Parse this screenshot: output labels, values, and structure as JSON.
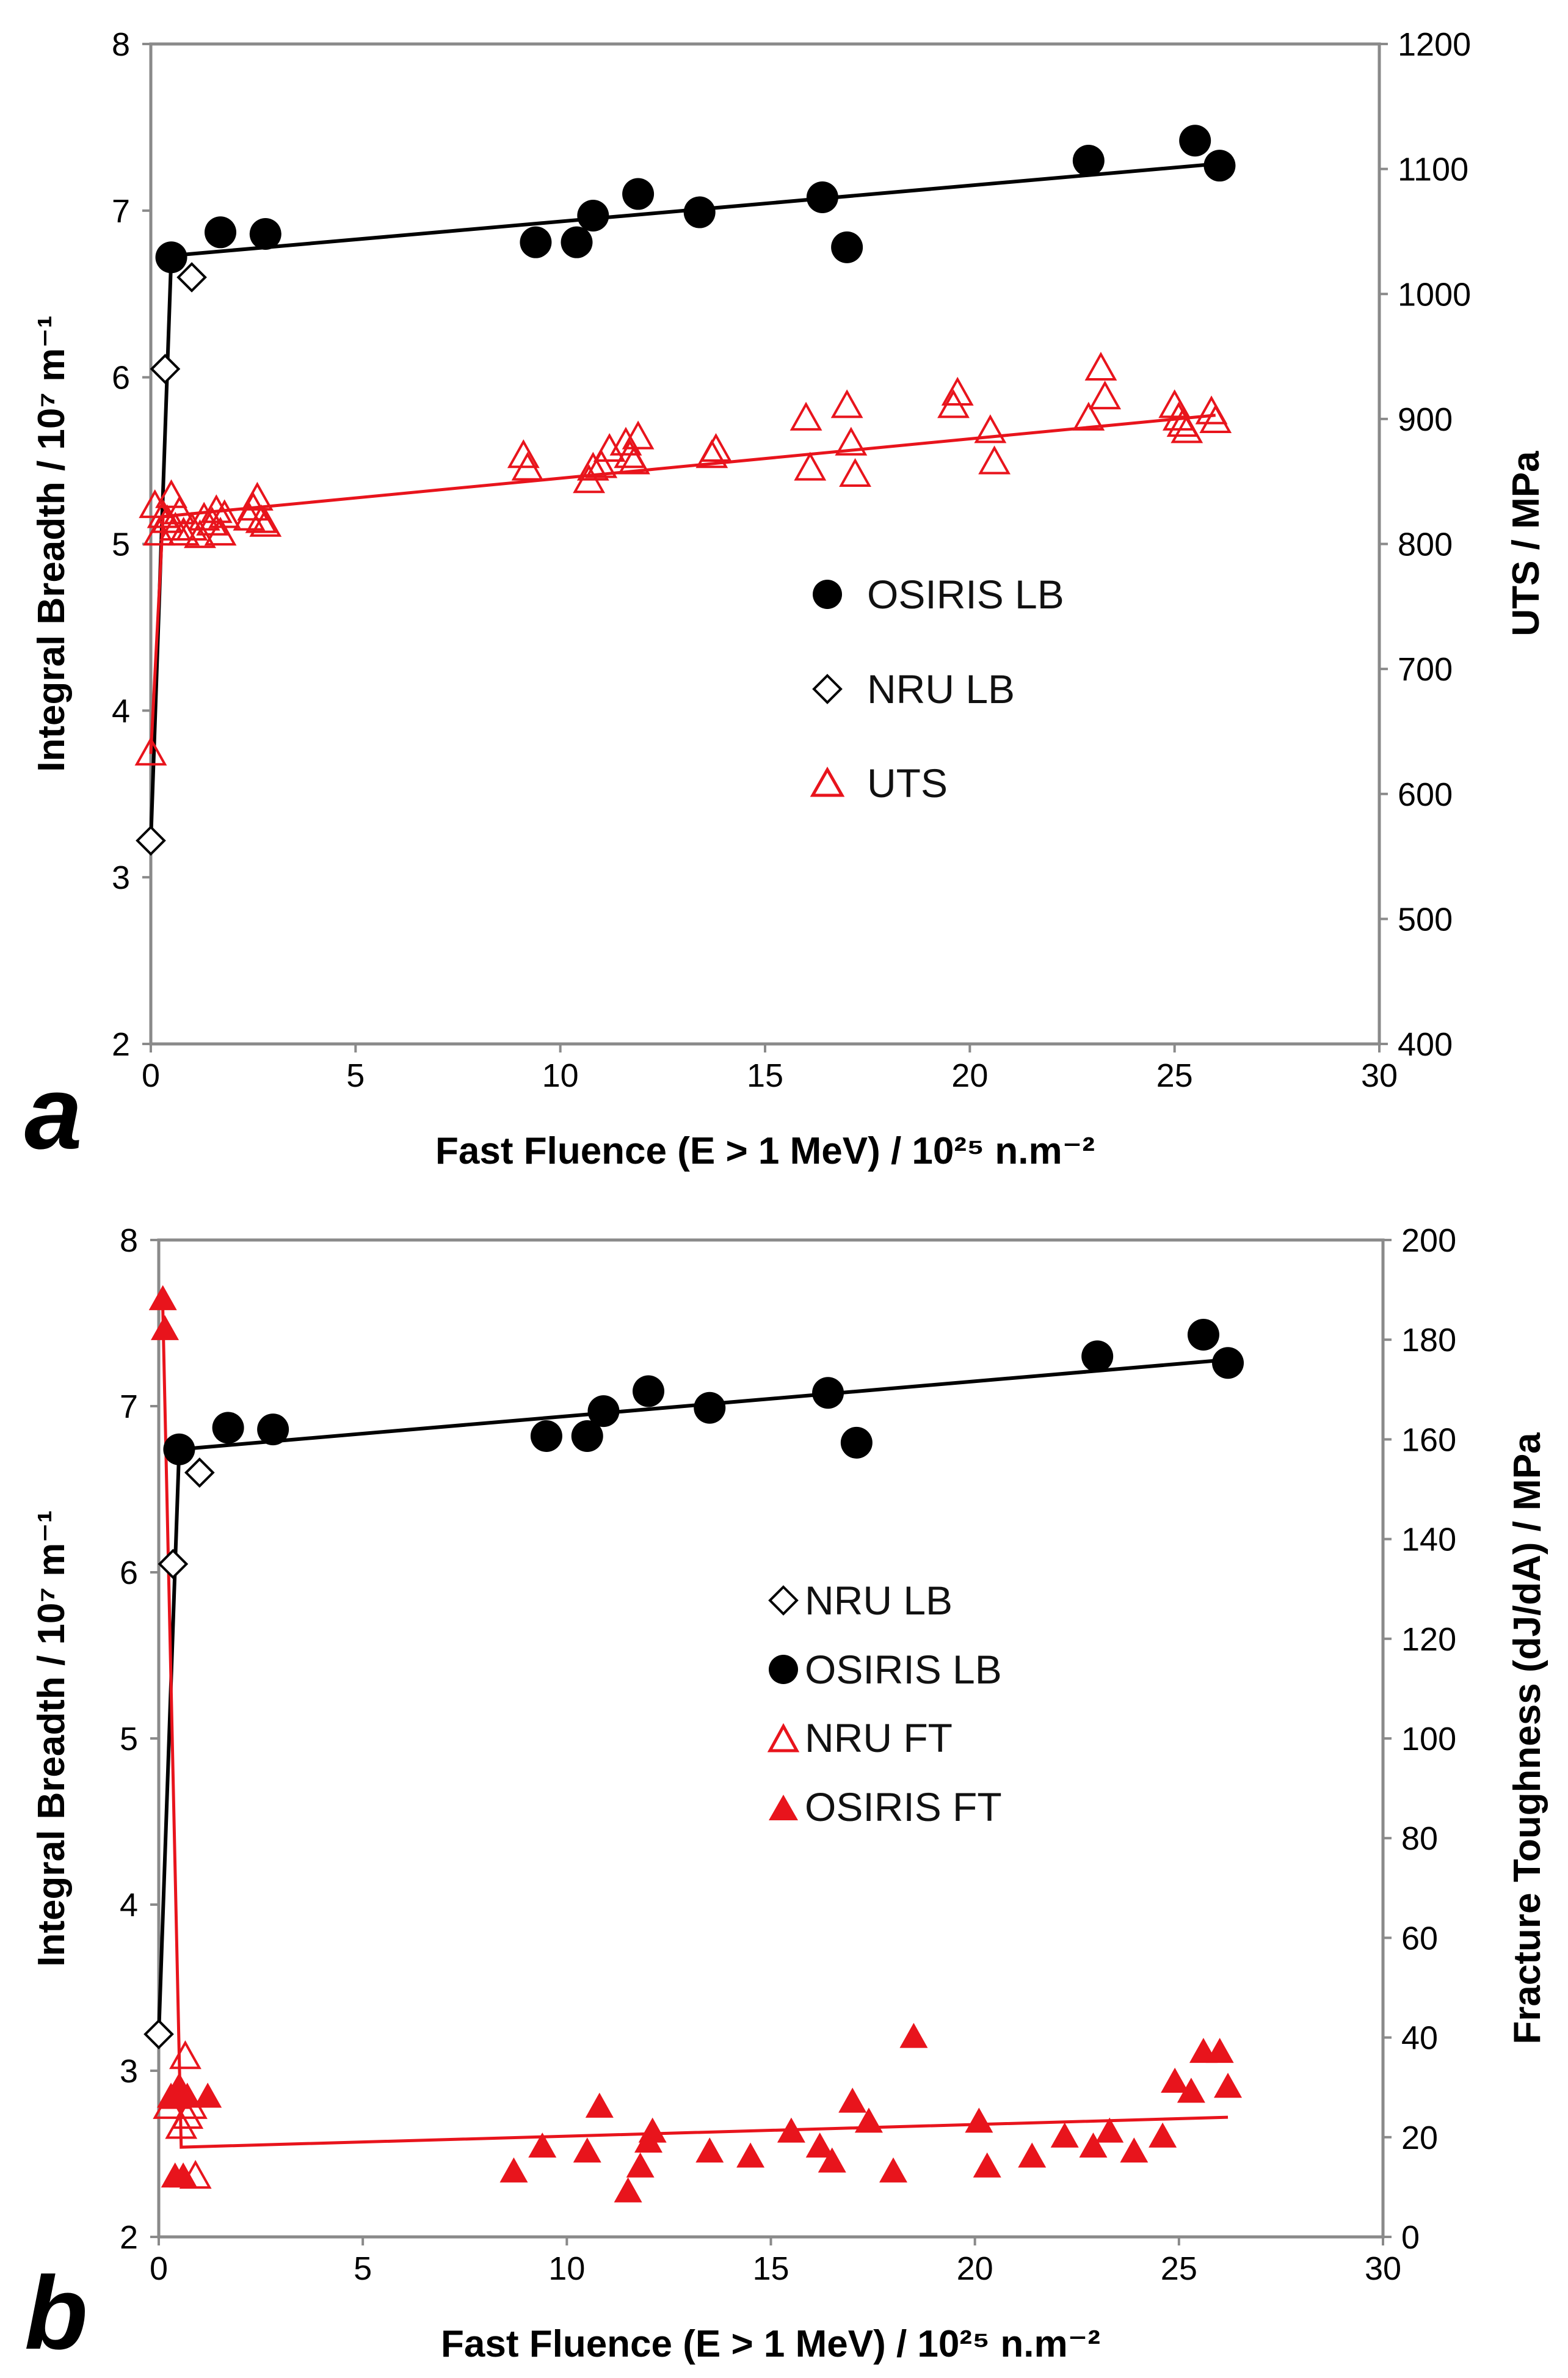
{
  "chart_data": [
    {
      "type": "scatter",
      "panel_label": "a",
      "xlabel": "Fast Fluence (E > 1 MeV)  / 10²⁵ n.m⁻²",
      "ylabel": "Integral Breadth / 10⁷ m⁻¹",
      "y2label": "UTS / MPa",
      "xlim": [
        0,
        30
      ],
      "ylim": [
        2,
        8
      ],
      "y2lim": [
        400,
        1200
      ],
      "xticks": [
        "0",
        "5",
        "10",
        "15",
        "20",
        "25",
        "30"
      ],
      "yticks": [
        "2",
        "3",
        "4",
        "5",
        "6",
        "7",
        "8"
      ],
      "y2ticks": [
        "400",
        "500",
        "600",
        "700",
        "800",
        "900",
        "1000",
        "1100",
        "1200"
      ],
      "legend": [
        "OSIRIS LB",
        "NRU LB",
        "UTS"
      ],
      "colors": {
        "black": "#000000",
        "red": "#e8141c"
      },
      "series": [
        {
          "name": "OSIRIS LB",
          "marker": "filled-circle",
          "axis": "left",
          "x": [
            0.5,
            1.7,
            2.8,
            9.4,
            10.4,
            10.8,
            11.9,
            13.4,
            16.4,
            17.0,
            22.9,
            25.5,
            26.1
          ],
          "y": [
            6.72,
            6.87,
            6.86,
            6.81,
            6.81,
            6.97,
            7.1,
            6.99,
            7.08,
            6.78,
            7.3,
            7.42,
            7.27
          ]
        },
        {
          "name": "NRU LB",
          "marker": "open-diamond",
          "axis": "left",
          "x": [
            0.0,
            0.35,
            1.0
          ],
          "y": [
            3.22,
            6.05,
            6.6
          ]
        },
        {
          "name": "UTS",
          "marker": "open-triangle",
          "axis": "right",
          "x": [
            0.0,
            0.1,
            0.2,
            0.3,
            0.4,
            0.5,
            0.6,
            0.7,
            0.8,
            1.0,
            1.2,
            1.3,
            1.5,
            1.6,
            1.7,
            1.8,
            2.4,
            2.5,
            2.6,
            2.7,
            2.8,
            9.1,
            9.2,
            10.7,
            10.8,
            11.0,
            11.2,
            11.6,
            11.7,
            11.8,
            11.9,
            13.7,
            13.8,
            16.0,
            16.1,
            17.0,
            17.1,
            17.2,
            19.6,
            19.7,
            20.5,
            20.6,
            22.9,
            23.2,
            23.3,
            25.0,
            25.1,
            25.2,
            25.3,
            25.9,
            26.0
          ],
          "y": [
            632,
            830,
            808,
            822,
            818,
            838,
            812,
            825,
            808,
            812,
            806,
            820,
            816,
            826,
            808,
            822,
            820,
            828,
            836,
            818,
            815,
            870,
            860,
            850,
            860,
            862,
            875,
            880,
            870,
            865,
            885,
            870,
            875,
            900,
            860,
            910,
            880,
            855,
            910,
            920,
            890,
            865,
            900,
            940,
            917,
            910,
            900,
            895,
            890,
            905,
            898
          ]
        }
      ],
      "fits": [
        {
          "name": "OSIRIS LB fit",
          "color": "black",
          "axis": "left",
          "x": [
            0.0,
            0.5,
            26.0
          ],
          "y": [
            3.22,
            6.73,
            7.28
          ]
        },
        {
          "name": "UTS fit",
          "color": "red",
          "axis": "right",
          "x": [
            0.0,
            0.3,
            26.0
          ],
          "y": [
            632,
            822,
            903
          ]
        }
      ]
    },
    {
      "type": "scatter",
      "panel_label": "b",
      "xlabel": "Fast Fluence (E > 1 MeV)  / 10²⁵ n.m⁻²",
      "ylabel": "Integral Breadth / 10⁷ m⁻¹",
      "y2label": "Fracture Toughness (dJ/dA) / MPa",
      "xlim": [
        0,
        30
      ],
      "ylim": [
        2,
        8
      ],
      "y2lim": [
        0,
        200
      ],
      "xticks": [
        "0",
        "5",
        "10",
        "15",
        "20",
        "25",
        "30"
      ],
      "yticks": [
        "2",
        "3",
        "4",
        "5",
        "6",
        "7",
        "8"
      ],
      "y2ticks": [
        "0",
        "20",
        "40",
        "60",
        "80",
        "100",
        "120",
        "140",
        "160",
        "180",
        "200"
      ],
      "legend": [
        "NRU LB",
        "OSIRIS LB",
        "NRU FT",
        "OSIRIS FT"
      ],
      "colors": {
        "black": "#000000",
        "red": "#e8141c"
      },
      "series": [
        {
          "name": "NRU LB",
          "marker": "open-diamond",
          "axis": "left",
          "x": [
            0.0,
            0.35,
            1.0
          ],
          "y": [
            3.22,
            6.05,
            6.6
          ]
        },
        {
          "name": "OSIRIS LB",
          "marker": "filled-circle",
          "axis": "left",
          "x": [
            0.5,
            1.7,
            2.8,
            9.5,
            10.5,
            10.9,
            12.0,
            13.5,
            16.4,
            17.1,
            23.0,
            25.6,
            26.2
          ],
          "y": [
            6.74,
            6.87,
            6.86,
            6.82,
            6.82,
            6.97,
            7.09,
            6.99,
            7.08,
            6.78,
            7.3,
            7.43,
            7.26
          ]
        },
        {
          "name": "NRU FT",
          "marker": "open-triangle",
          "axis": "right",
          "x": [
            0.25,
            0.4,
            0.55,
            0.65,
            0.7,
            0.8,
            0.9
          ],
          "y": [
            26,
            28,
            22,
            36,
            24,
            26,
            12
          ]
        },
        {
          "name": "OSIRIS FT",
          "marker": "filled-triangle",
          "axis": "right",
          "x": [
            0.1,
            0.15,
            0.3,
            0.4,
            0.5,
            0.6,
            0.7,
            1.2,
            8.7,
            9.4,
            10.5,
            10.8,
            11.5,
            11.8,
            12.0,
            12.1,
            13.5,
            14.5,
            15.5,
            16.2,
            16.5,
            17.0,
            17.4,
            18.0,
            18.5,
            20.1,
            20.3,
            21.4,
            22.2,
            22.9,
            23.3,
            23.9,
            24.6,
            24.9,
            25.3,
            25.6,
            26.0,
            26.2
          ],
          "y": [
            188,
            182,
            28,
            12,
            30,
            12,
            28,
            28,
            13,
            18,
            17,
            26,
            9,
            14,
            19,
            21,
            17,
            16,
            21,
            18,
            15,
            27,
            23,
            13,
            40,
            23,
            14,
            16,
            20,
            18,
            21,
            17,
            20,
            31,
            29,
            37,
            37,
            30
          ]
        }
      ],
      "fits": [
        {
          "name": "OSIRIS LB fit",
          "color": "black",
          "axis": "left",
          "x": [
            0.0,
            0.5,
            26.2
          ],
          "y": [
            3.22,
            6.74,
            7.28
          ]
        },
        {
          "name": "FT fit",
          "color": "red",
          "axis": "right",
          "x": [
            0.1,
            0.55,
            26.2
          ],
          "y": [
            186,
            18,
            24
          ]
        }
      ]
    }
  ]
}
